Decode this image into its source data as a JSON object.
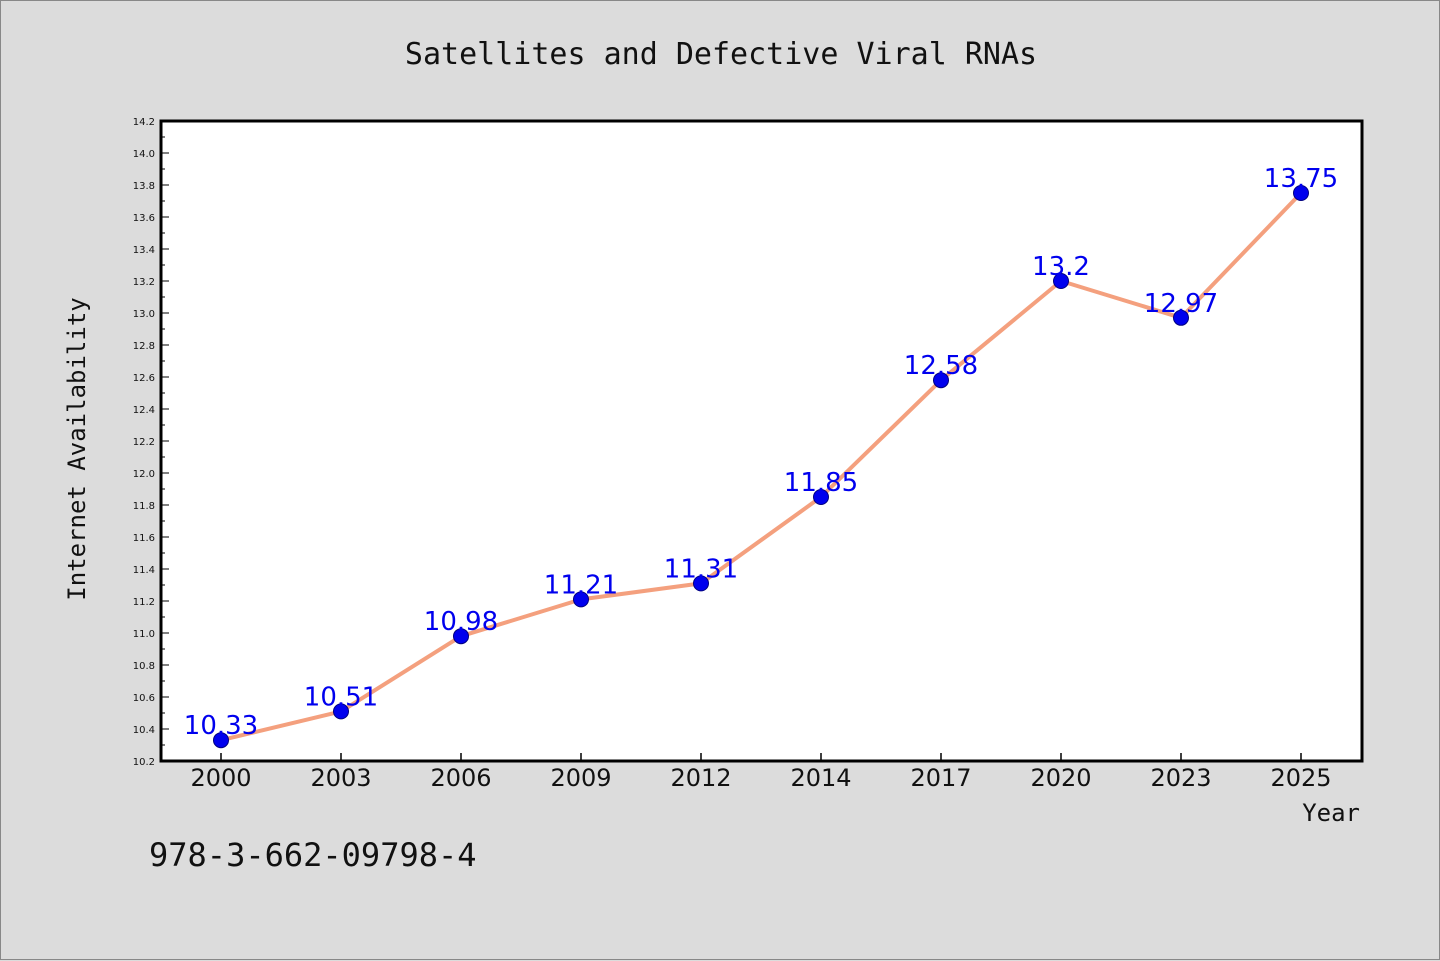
{
  "chart_data": {
    "type": "line",
    "title": "Satellites and Defective Viral RNAs",
    "xlabel": "Year",
    "ylabel": "Internet Availability",
    "categories": [
      "2000",
      "2003",
      "2006",
      "2009",
      "2012",
      "2014",
      "2017",
      "2020",
      "2023",
      "2025"
    ],
    "series": [
      {
        "values": [
          10.33,
          10.51,
          10.98,
          11.21,
          11.31,
          11.85,
          12.58,
          13.2,
          12.97,
          13.75
        ],
        "labels": [
          "10.33",
          "10.51",
          "10.98",
          "11.21",
          "11.31",
          "11.85",
          "12.58",
          "13.2",
          "12.97",
          "13.75"
        ]
      }
    ],
    "ylim": [
      10.2,
      14.2
    ],
    "yticks": [
      "10.2",
      "10.4",
      "10.6",
      "10.8",
      "11.0",
      "11.2",
      "11.4",
      "11.6",
      "11.8",
      "12.0",
      "12.2",
      "12.4",
      "12.6",
      "12.8",
      "13.0",
      "13.2",
      "13.4",
      "13.6",
      "13.8",
      "14.0",
      "14.2"
    ],
    "grid": false,
    "colors": {
      "line": "#f4a07e",
      "marker": "#0000ee",
      "marker_edge": "#000080",
      "label": "#0000ee",
      "frame": "#000000",
      "background": "#dcdcdc",
      "plot_background": "#ffffff"
    }
  },
  "footer_text": "978-3-662-09798-4"
}
